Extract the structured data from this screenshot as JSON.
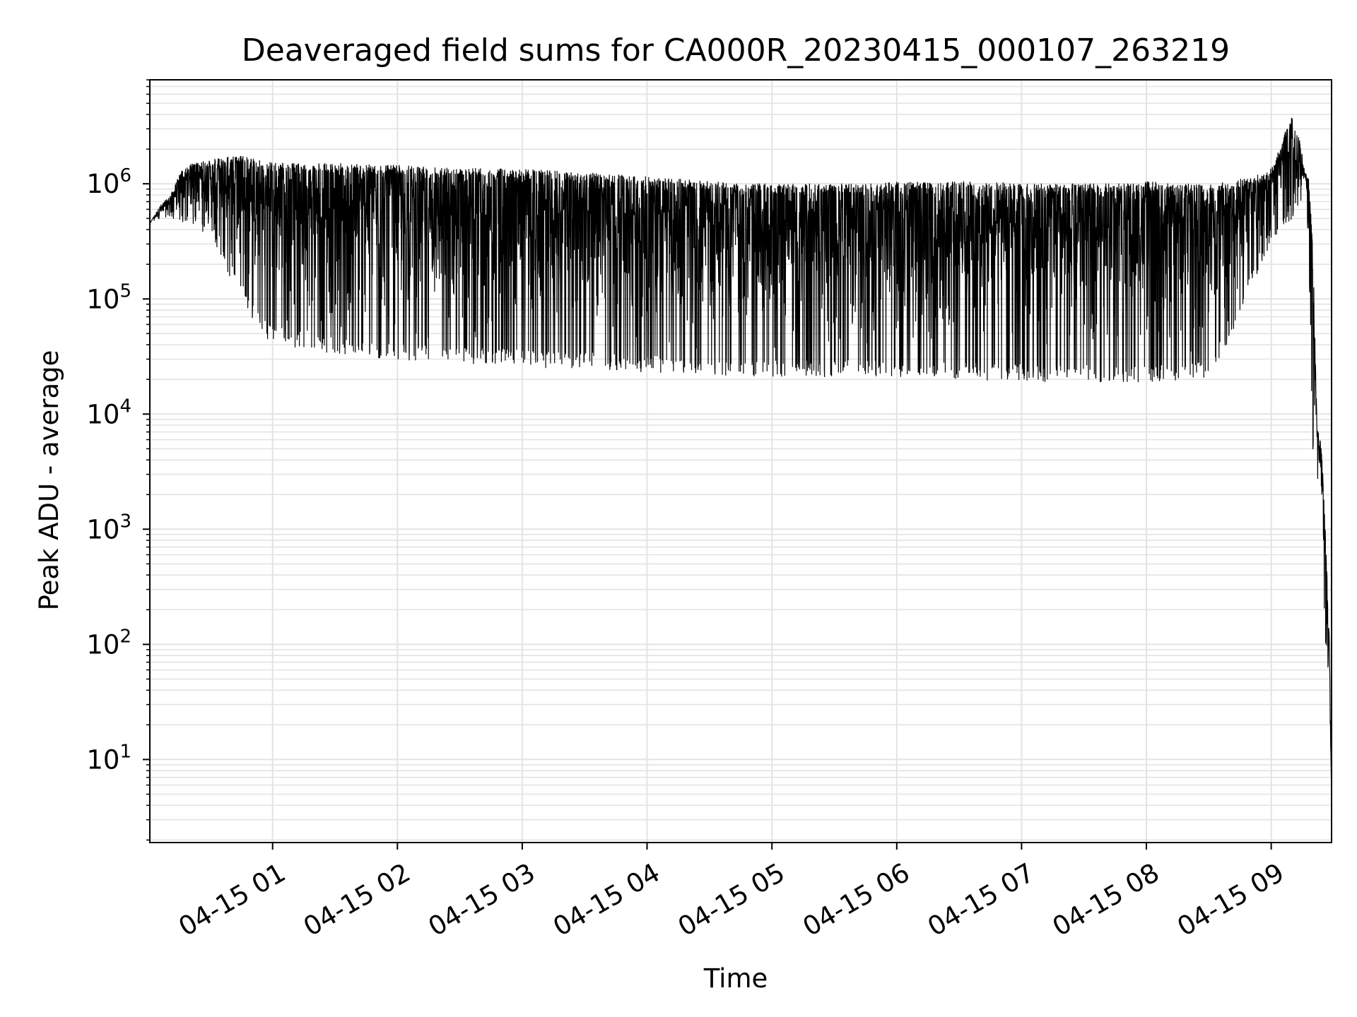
{
  "chart_data": {
    "type": "line",
    "title": "Deaveraged field sums for CA000R_20230415_000107_263219",
    "xlabel": "Time",
    "ylabel": "Peak ADU - average",
    "yscale": "log",
    "grid": true,
    "legend": "none",
    "line_color": "#000000",
    "grid_color": "#e3e3e3",
    "xlim": [
      "04-15 00:01",
      "04-15 09:29"
    ],
    "ylim": [
      1.9,
      8000000
    ],
    "x_ticks": [
      "04-15 01",
      "04-15 02",
      "04-15 03",
      "04-15 04",
      "04-15 05",
      "04-15 06",
      "04-15 07",
      "04-15 08",
      "04-15 09"
    ],
    "y_ticks": [
      {
        "base": "10",
        "exp": "1",
        "value": 10
      },
      {
        "base": "10",
        "exp": "2",
        "value": 100
      },
      {
        "base": "10",
        "exp": "3",
        "value": 1000
      },
      {
        "base": "10",
        "exp": "4",
        "value": 10000
      },
      {
        "base": "10",
        "exp": "5",
        "value": 100000
      },
      {
        "base": "10",
        "exp": "6",
        "value": 1000000
      }
    ],
    "series": [
      {
        "x": [
          "04-15 00:01",
          "04-15 00:06",
          "04-15 00:11",
          "04-15 00:16",
          "04-15 00:21",
          "04-15 00:26",
          "04-15 00:30",
          "04-15 00:36",
          "04-15 00:42",
          "04-15 00:48",
          "04-15 00:54",
          "04-15 01:00",
          "04-15 01:10",
          "04-15 01:20",
          "04-15 01:30",
          "04-15 01:40",
          "04-15 01:50",
          "04-15 02:00",
          "04-15 02:15",
          "04-15 02:30",
          "04-15 02:45",
          "04-15 03:00",
          "04-15 03:15",
          "04-15 03:30",
          "04-15 03:45",
          "04-15 04:00",
          "04-15 04:15",
          "04-15 04:30",
          "04-15 04:45",
          "04-15 05:00",
          "04-15 05:15",
          "04-15 05:30",
          "04-15 05:45",
          "04-15 06:00",
          "04-15 06:15",
          "04-15 06:30",
          "04-15 06:45",
          "04-15 07:00",
          "04-15 07:15",
          "04-15 07:30",
          "04-15 07:45",
          "04-15 08:00",
          "04-15 08:15",
          "04-15 08:30",
          "04-15 08:40",
          "04-15 08:50",
          "04-15 09:00",
          "04-15 09:10",
          "04-15 09:14",
          "04-15 09:16",
          "04-15 09:18",
          "04-15 09:20",
          "04-15 09:22",
          "04-15 09:24",
          "04-15 09:26",
          "04-15 09:28",
          "04-15 09:29"
        ],
        "max": [
          450000,
          650000,
          800000,
          1300000,
          1500000,
          1550000,
          1600000,
          1700000,
          1800000,
          1700000,
          1600000,
          1550000,
          1500000,
          1500000,
          1500000,
          1500000,
          1450000,
          1450000,
          1400000,
          1400000,
          1350000,
          1350000,
          1300000,
          1250000,
          1200000,
          1150000,
          1100000,
          1050000,
          1000000,
          1000000,
          1000000,
          1000000,
          1000000,
          1050000,
          1050000,
          1050000,
          1050000,
          1000000,
          1000000,
          1000000,
          1000000,
          1050000,
          1000000,
          1000000,
          1050000,
          1150000,
          1400000,
          4000000,
          2300000,
          1300000,
          1100000,
          300000,
          8000,
          6000,
          1000,
          100,
          4
        ],
        "min": [
          450000,
          480000,
          480000,
          470000,
          420000,
          380000,
          350000,
          200000,
          130000,
          80000,
          50000,
          42000,
          38000,
          35000,
          33000,
          31000,
          30000,
          29000,
          28000,
          27000,
          26500,
          26000,
          25000,
          24500,
          24000,
          23000,
          22500,
          22000,
          21500,
          21000,
          21000,
          21000,
          21000,
          21000,
          20500,
          20000,
          19500,
          19500,
          19000,
          19000,
          19000,
          19000,
          19500,
          20000,
          45000,
          120000,
          300000,
          500000,
          600000,
          1100000,
          300000,
          4000,
          3000,
          800,
          100,
          40,
          4
        ]
      }
    ]
  }
}
